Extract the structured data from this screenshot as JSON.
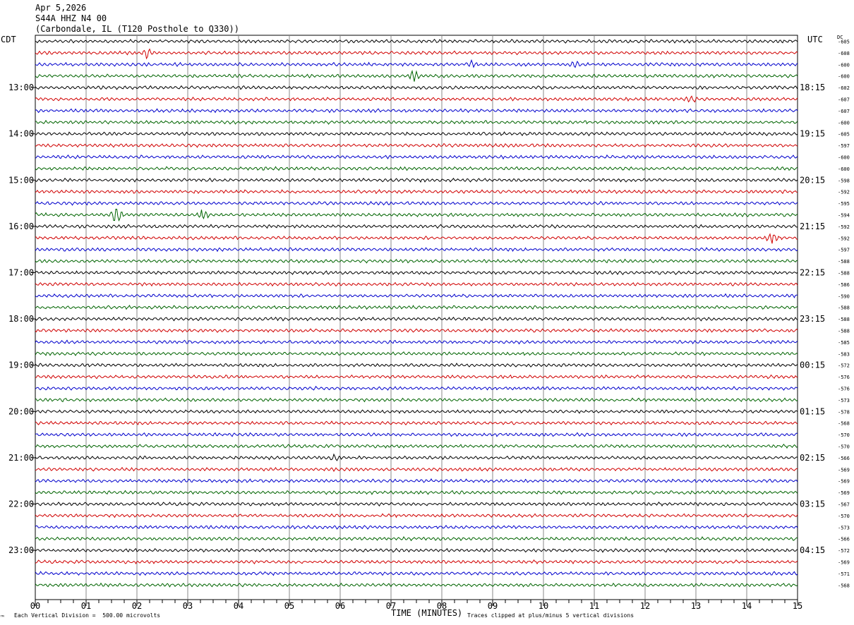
{
  "header": {
    "date": "Apr 5,2026",
    "station": "S44A HHZ N4 00",
    "location": "(Carbondale, IL (T120 Posthole to Q330))"
  },
  "left_zone_label": "CDT",
  "right_zone_label": "UTC",
  "dc_header": "DC",
  "footer": {
    "scale_note": "Each Vertical Division =  500.00 microvolts",
    "clip_note": "Traces clipped at plus/minus 5 vertical divisions",
    "corner_mark": "™"
  },
  "colors": {
    "cycle": [
      "#000000",
      "#d00000",
      "#0000cc",
      "#006400"
    ],
    "grid": "#888888",
    "axis": "#000000"
  },
  "chart_data": {
    "type": "line",
    "title": "S44A HHZ N4 00",
    "xlabel": "TIME (MINUTES)",
    "x_ticks": [
      "00",
      "01",
      "02",
      "03",
      "04",
      "05",
      "06",
      "07",
      "08",
      "09",
      "10",
      "11",
      "12",
      "13",
      "14",
      "15"
    ],
    "xlim": [
      0,
      15
    ],
    "trace_count": 48,
    "minutes_per_trace": 15,
    "left_hour_labels": [
      "13:00",
      "14:00",
      "15:00",
      "16:00",
      "17:00",
      "18:00",
      "19:00",
      "20:00",
      "21:00",
      "22:00",
      "23:00"
    ],
    "right_hour_labels": [
      "18:15",
      "19:15",
      "20:15",
      "21:15",
      "22:15",
      "23:15",
      "00:15",
      "01:15",
      "02:15",
      "03:15",
      "04:15"
    ],
    "hour_label_first_trace": 4,
    "dc_offsets": [
      -605,
      -608,
      -600,
      -600,
      -602,
      -607,
      -607,
      -600,
      -605,
      -597,
      -600,
      -600,
      -598,
      -592,
      -595,
      -594,
      -592,
      -592,
      -597,
      -588,
      -588,
      -586,
      -590,
      -588,
      -588,
      -588,
      -585,
      -583,
      -572,
      -576,
      -576,
      -573,
      -578,
      -568,
      -570,
      -570,
      -566,
      -569,
      -569,
      -569,
      -567,
      -570,
      -573,
      -566,
      -572,
      -569,
      -571,
      -568
    ],
    "events": [
      {
        "trace": 1,
        "minute": 2.2,
        "amplitude": 1.4
      },
      {
        "trace": 2,
        "minute": 8.6,
        "amplitude": 0.9
      },
      {
        "trace": 2,
        "minute": 10.6,
        "amplitude": 0.9
      },
      {
        "trace": 3,
        "minute": 7.45,
        "amplitude": 1.4
      },
      {
        "trace": 5,
        "minute": 12.9,
        "amplitude": 0.8
      },
      {
        "trace": 15,
        "minute": 1.6,
        "amplitude": 3.2
      },
      {
        "trace": 15,
        "minute": 3.3,
        "amplitude": 1.3
      },
      {
        "trace": 17,
        "minute": 14.5,
        "amplitude": 1.4
      },
      {
        "trace": 36,
        "minute": 5.9,
        "amplitude": 0.7
      }
    ]
  }
}
